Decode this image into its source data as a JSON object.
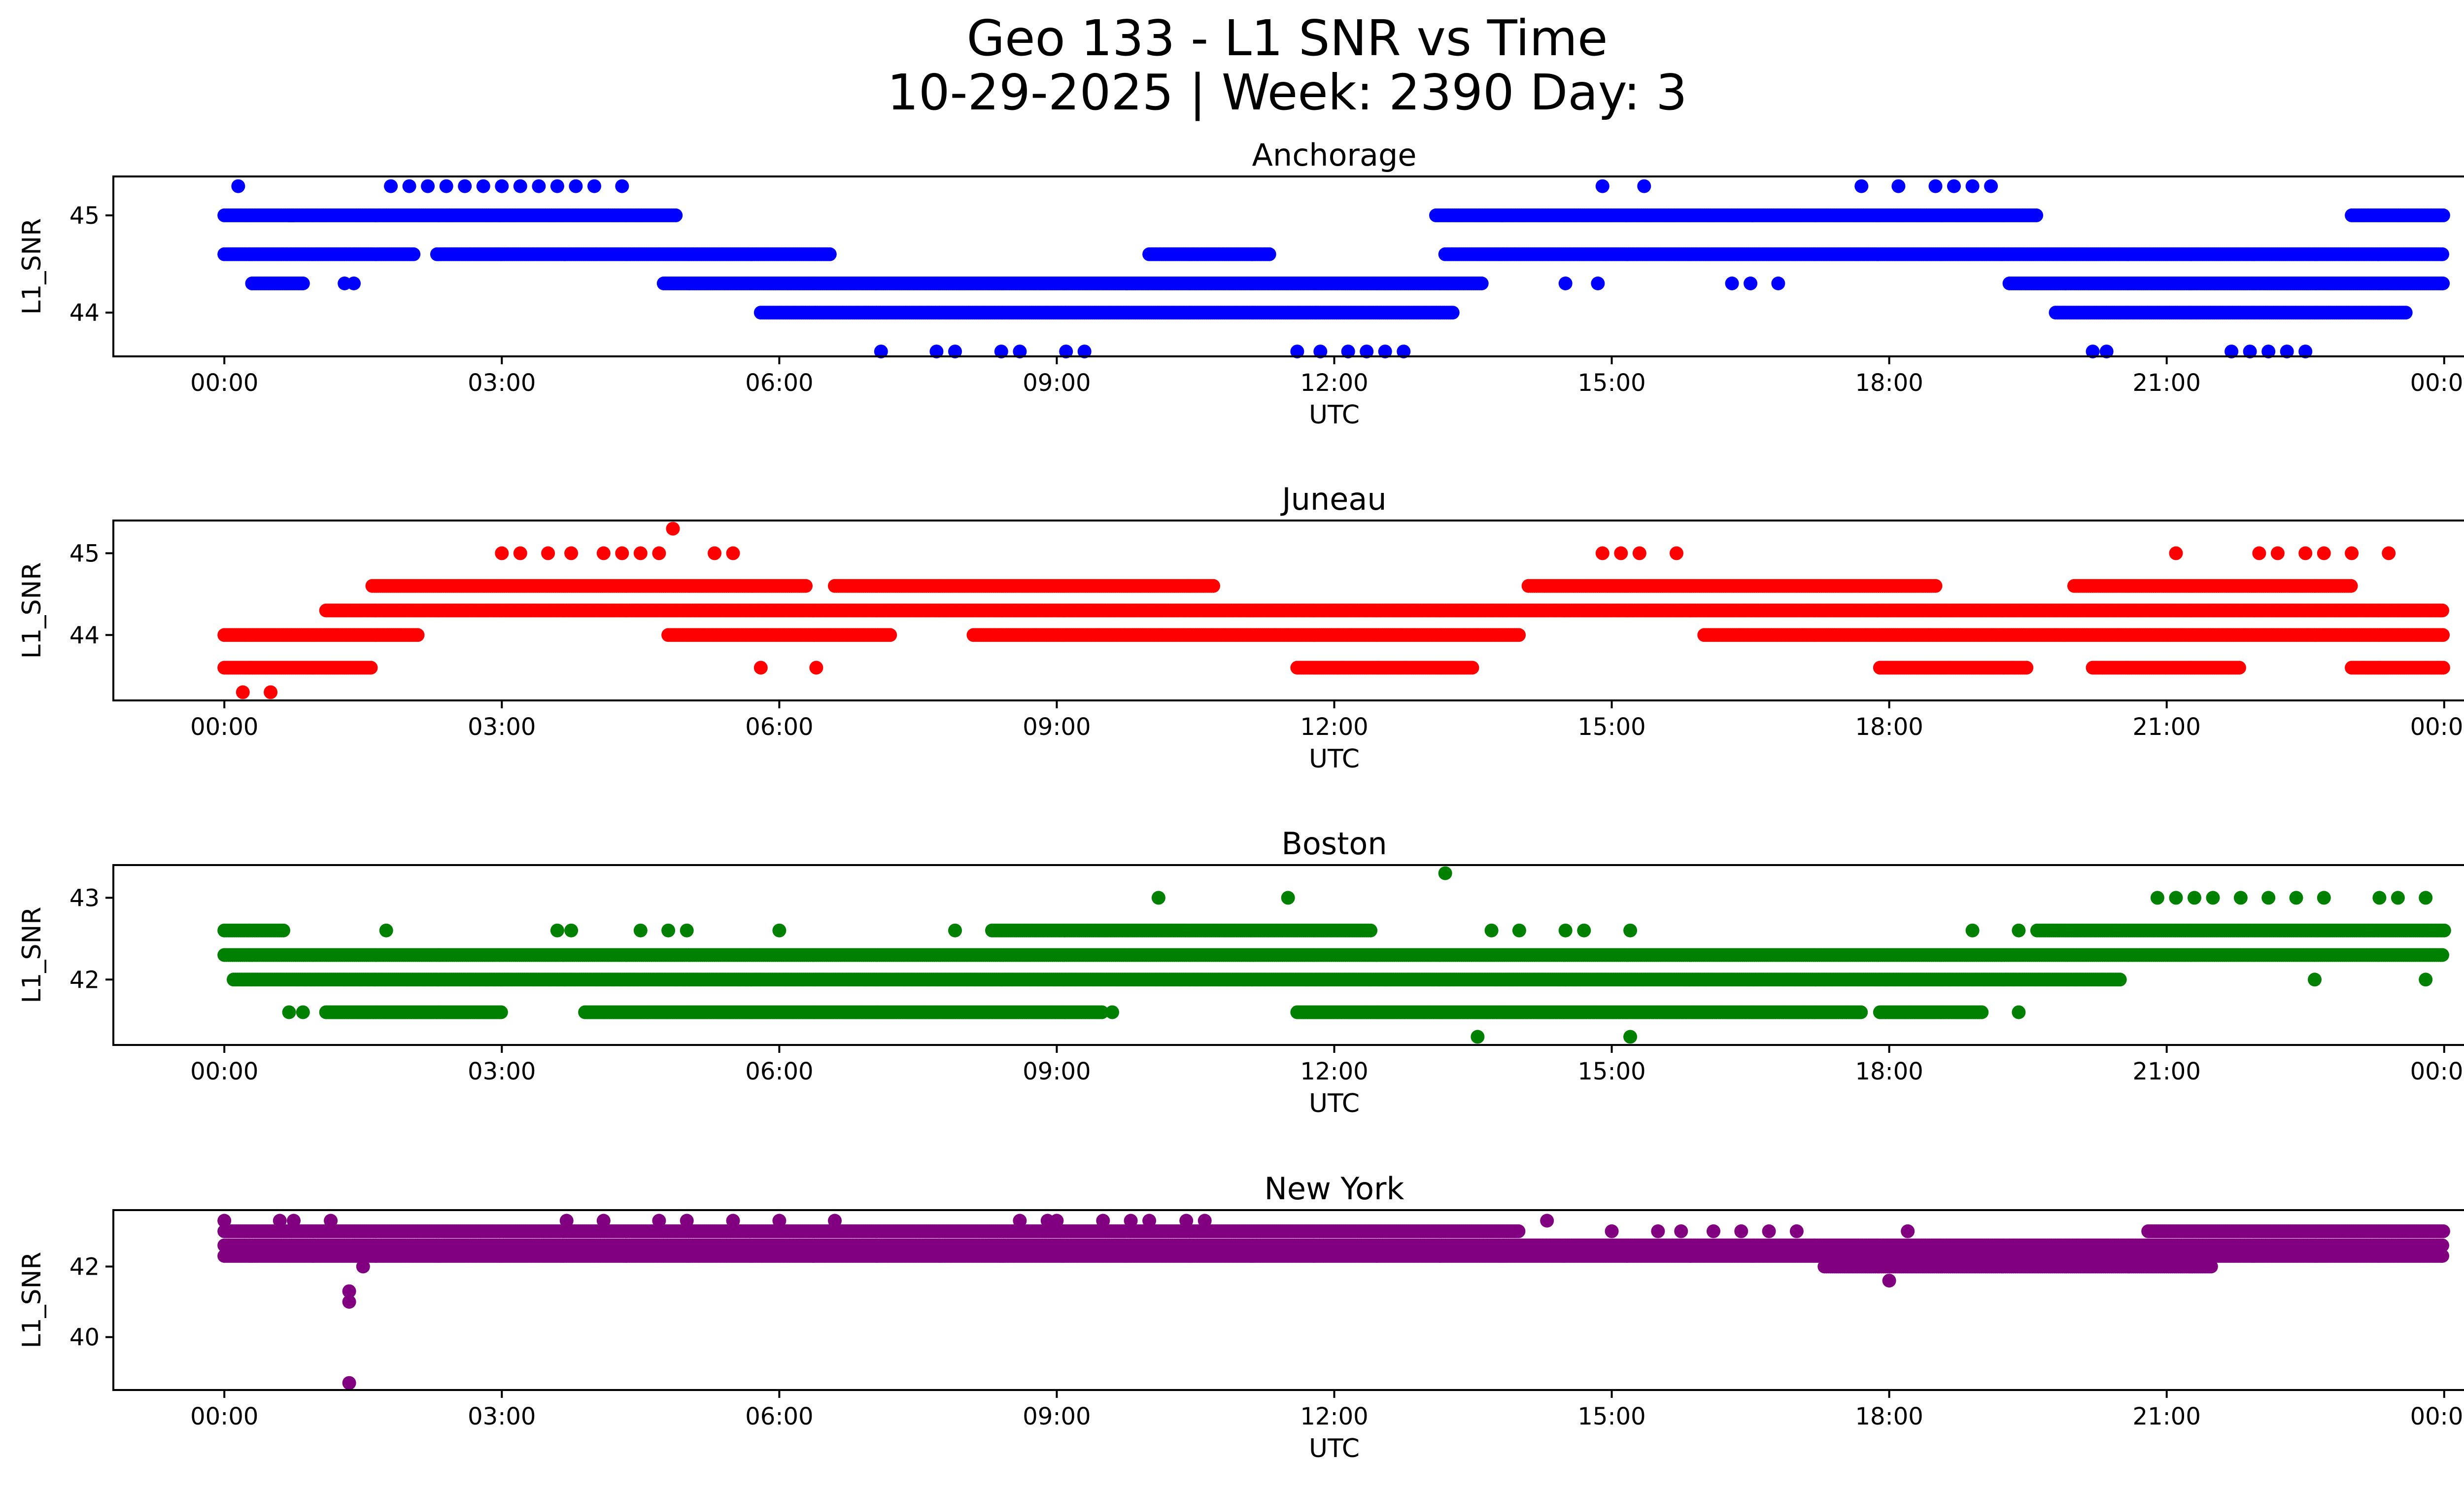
{
  "figure": {
    "title_line1": "Geo 133 - L1 SNR vs Time",
    "title_line2": "10-29-2025 | Week: 2390 Day: 3"
  },
  "chart_data": [
    {
      "type": "scatter",
      "title": "Anchorage",
      "xlabel": "UTC",
      "ylabel": "L1_SNR",
      "color": "#0000ff",
      "xlim": [
        -1.2,
        25.2
      ],
      "ylim": [
        43.55,
        45.4
      ],
      "xticks": [
        "00:00",
        "03:00",
        "06:00",
        "09:00",
        "12:00",
        "15:00",
        "18:00",
        "21:00",
        "00:00"
      ],
      "yticks": [
        44,
        45
      ],
      "levels": [
        45.0,
        44.6,
        44.3,
        44.0
      ],
      "bands": [
        {
          "y": 45.0,
          "x": [
            [
              0,
              0.75
            ],
            [
              0.7,
              4.9
            ],
            [
              13.1,
              19.6
            ],
            [
              23.0,
              24
            ]
          ]
        },
        {
          "y": 44.6,
          "x": [
            [
              0,
              2.05
            ],
            [
              2.3,
              6.55
            ],
            [
              10.0,
              11.3
            ],
            [
              13.2,
              24
            ]
          ]
        },
        {
          "y": 44.3,
          "x": [
            [
              0.3,
              0.85
            ],
            [
              4.75,
              13.6
            ],
            [
              19.3,
              24
            ]
          ]
        },
        {
          "y": 44.0,
          "x": [
            [
              5.8,
              13.3
            ],
            [
              19.8,
              23.6
            ]
          ]
        }
      ],
      "points": [
        [
          0.15,
          45.3
        ],
        [
          1.8,
          45.3
        ],
        [
          2.0,
          45.3
        ],
        [
          2.2,
          45.3
        ],
        [
          2.4,
          45.3
        ],
        [
          2.6,
          45.3
        ],
        [
          2.8,
          45.3
        ],
        [
          3.0,
          45.3
        ],
        [
          3.2,
          45.3
        ],
        [
          3.4,
          45.3
        ],
        [
          3.6,
          45.3
        ],
        [
          3.8,
          45.3
        ],
        [
          4.0,
          45.3
        ],
        [
          4.3,
          45.3
        ],
        [
          14.9,
          45.3
        ],
        [
          15.35,
          45.3
        ],
        [
          17.7,
          45.3
        ],
        [
          18.1,
          45.3
        ],
        [
          18.5,
          45.3
        ],
        [
          18.7,
          45.3
        ],
        [
          18.9,
          45.3
        ],
        [
          19.1,
          45.3
        ],
        [
          1.3,
          44.3
        ],
        [
          1.4,
          44.3
        ],
        [
          14.5,
          44.3
        ],
        [
          14.85,
          44.3
        ],
        [
          16.3,
          44.3
        ],
        [
          16.5,
          44.3
        ],
        [
          16.8,
          44.3
        ],
        [
          7.1,
          43.6
        ],
        [
          7.7,
          43.6
        ],
        [
          7.9,
          43.6
        ],
        [
          8.4,
          43.6
        ],
        [
          8.6,
          43.6
        ],
        [
          9.1,
          43.6
        ],
        [
          9.3,
          43.6
        ],
        [
          11.6,
          43.6
        ],
        [
          11.85,
          43.6
        ],
        [
          12.15,
          43.6
        ],
        [
          12.35,
          43.6
        ],
        [
          12.55,
          43.6
        ],
        [
          12.75,
          43.6
        ],
        [
          20.2,
          43.6
        ],
        [
          20.35,
          43.6
        ],
        [
          21.7,
          43.6
        ],
        [
          21.9,
          43.6
        ],
        [
          22.1,
          43.6
        ],
        [
          22.3,
          43.6
        ],
        [
          22.5,
          43.6
        ]
      ]
    },
    {
      "type": "scatter",
      "title": "Juneau",
      "xlabel": "UTC",
      "ylabel": "L1_SNR",
      "color": "#ff0000",
      "xlim": [
        -1.2,
        25.2
      ],
      "ylim": [
        43.2,
        45.4
      ],
      "xticks": [
        "00:00",
        "03:00",
        "06:00",
        "09:00",
        "12:00",
        "15:00",
        "18:00",
        "21:00",
        "00:00"
      ],
      "yticks": [
        44,
        45
      ],
      "levels": [
        44.6,
        44.3,
        44.0,
        43.6
      ],
      "bands": [
        {
          "y": 44.6,
          "x": [
            [
              1.6,
              6.3
            ],
            [
              6.6,
              10.7
            ],
            [
              14.1,
              18.5
            ],
            [
              20.0,
              23.0
            ]
          ]
        },
        {
          "y": 44.3,
          "x": [
            [
              1.1,
              24
            ]
          ]
        },
        {
          "y": 44.0,
          "x": [
            [
              0,
              2.1
            ],
            [
              4.8,
              7.2
            ],
            [
              8.1,
              14.0
            ],
            [
              16.0,
              24
            ]
          ]
        },
        {
          "y": 43.6,
          "x": [
            [
              0,
              1.6
            ],
            [
              11.6,
              13.5
            ],
            [
              17.9,
              19.5
            ],
            [
              20.2,
              21.8
            ],
            [
              23.0,
              24
            ]
          ]
        }
      ],
      "points": [
        [
          3.0,
          45.0
        ],
        [
          3.2,
          45.0
        ],
        [
          3.5,
          45.0
        ],
        [
          3.75,
          45.0
        ],
        [
          4.1,
          45.0
        ],
        [
          4.3,
          45.0
        ],
        [
          4.5,
          45.0
        ],
        [
          4.7,
          45.0
        ],
        [
          5.3,
          45.0
        ],
        [
          5.5,
          45.0
        ],
        [
          14.9,
          45.0
        ],
        [
          15.1,
          45.0
        ],
        [
          15.3,
          45.0
        ],
        [
          15.7,
          45.0
        ],
        [
          21.1,
          45.0
        ],
        [
          22.0,
          45.0
        ],
        [
          22.2,
          45.0
        ],
        [
          22.5,
          45.0
        ],
        [
          22.7,
          45.0
        ],
        [
          23.0,
          45.0
        ],
        [
          23.4,
          45.0
        ],
        [
          4.85,
          45.3
        ],
        [
          0.2,
          43.3
        ],
        [
          0.5,
          43.3
        ],
        [
          5.8,
          43.6
        ],
        [
          6.4,
          43.6
        ]
      ]
    },
    {
      "type": "scatter",
      "title": "Boston",
      "xlabel": "UTC",
      "ylabel": "L1_SNR",
      "color": "#008000",
      "xlim": [
        -1.2,
        25.2
      ],
      "ylim": [
        41.2,
        43.4
      ],
      "xticks": [
        "00:00",
        "03:00",
        "06:00",
        "09:00",
        "12:00",
        "15:00",
        "18:00",
        "21:00",
        "00:00"
      ],
      "yticks": [
        42,
        43
      ],
      "levels": [
        42.6,
        42.3,
        42.0,
        41.6
      ],
      "bands": [
        {
          "y": 42.6,
          "x": [
            [
              0,
              0.65
            ],
            [
              8.3,
              12.4
            ],
            [
              19.6,
              24
            ]
          ]
        },
        {
          "y": 42.3,
          "x": [
            [
              0,
              24
            ]
          ]
        },
        {
          "y": 42.0,
          "x": [
            [
              0.1,
              20.5
            ]
          ]
        },
        {
          "y": 41.6,
          "x": [
            [
              1.1,
              3.0
            ],
            [
              3.9,
              9.5
            ],
            [
              11.6,
              17.7
            ],
            [
              17.9,
              19.0
            ]
          ]
        }
      ],
      "points": [
        [
          1.75,
          42.6
        ],
        [
          3.6,
          42.6
        ],
        [
          3.75,
          42.6
        ],
        [
          4.5,
          42.6
        ],
        [
          4.8,
          42.6
        ],
        [
          5.0,
          42.6
        ],
        [
          6.0,
          42.6
        ],
        [
          7.9,
          42.6
        ],
        [
          13.7,
          42.6
        ],
        [
          14.0,
          42.6
        ],
        [
          14.5,
          42.6
        ],
        [
          14.7,
          42.6
        ],
        [
          15.2,
          42.6
        ],
        [
          18.9,
          42.6
        ],
        [
          19.4,
          42.6
        ],
        [
          10.1,
          43.0
        ],
        [
          11.5,
          43.0
        ],
        [
          20.9,
          43.0
        ],
        [
          21.1,
          43.0
        ],
        [
          21.3,
          43.0
        ],
        [
          21.5,
          43.0
        ],
        [
          21.8,
          43.0
        ],
        [
          22.1,
          43.0
        ],
        [
          22.4,
          43.0
        ],
        [
          22.7,
          43.0
        ],
        [
          23.3,
          43.0
        ],
        [
          23.5,
          43.0
        ],
        [
          23.8,
          43.0
        ],
        [
          13.2,
          43.3
        ],
        [
          13.55,
          41.3
        ],
        [
          15.2,
          41.3
        ],
        [
          0.7,
          41.6
        ],
        [
          0.85,
          41.6
        ],
        [
          9.6,
          41.6
        ],
        [
          19.4,
          41.6
        ],
        [
          22.6,
          42.0
        ],
        [
          23.8,
          42.0
        ]
      ]
    },
    {
      "type": "scatter",
      "title": "New York",
      "xlabel": "UTC",
      "ylabel": "L1_SNR",
      "color": "#800080",
      "xlim": [
        -1.2,
        25.2
      ],
      "ylim": [
        38.5,
        43.6
      ],
      "xticks": [
        "00:00",
        "03:00",
        "06:00",
        "09:00",
        "12:00",
        "15:00",
        "18:00",
        "21:00",
        "00:00"
      ],
      "yticks": [
        40,
        42
      ],
      "levels": [
        43.0,
        42.6,
        42.3,
        42.0
      ],
      "bands": [
        {
          "y": 43.0,
          "x": [
            [
              0,
              14.0
            ],
            [
              20.8,
              24
            ]
          ]
        },
        {
          "y": 42.6,
          "x": [
            [
              0,
              24
            ]
          ]
        },
        {
          "y": 42.3,
          "x": [
            [
              0,
              24
            ]
          ]
        },
        {
          "y": 42.0,
          "x": [
            [
              17.3,
              21.5
            ]
          ]
        }
      ],
      "points": [
        [
          0.0,
          43.3
        ],
        [
          0.6,
          43.3
        ],
        [
          0.75,
          43.3
        ],
        [
          1.15,
          43.3
        ],
        [
          3.7,
          43.3
        ],
        [
          4.1,
          43.3
        ],
        [
          4.7,
          43.3
        ],
        [
          5.0,
          43.3
        ],
        [
          5.5,
          43.3
        ],
        [
          6.0,
          43.3
        ],
        [
          6.6,
          43.3
        ],
        [
          8.6,
          43.3
        ],
        [
          8.9,
          43.3
        ],
        [
          9.0,
          43.3
        ],
        [
          9.5,
          43.3
        ],
        [
          9.8,
          43.3
        ],
        [
          10.0,
          43.3
        ],
        [
          10.4,
          43.3
        ],
        [
          10.6,
          43.3
        ],
        [
          14.3,
          43.3
        ],
        [
          15.0,
          43.0
        ],
        [
          15.5,
          43.0
        ],
        [
          15.75,
          43.0
        ],
        [
          16.1,
          43.0
        ],
        [
          16.4,
          43.0
        ],
        [
          16.7,
          43.0
        ],
        [
          17.0,
          43.0
        ],
        [
          18.2,
          43.0
        ],
        [
          1.35,
          41.3
        ],
        [
          1.35,
          41.0
        ],
        [
          1.35,
          38.7
        ],
        [
          1.5,
          42.0
        ],
        [
          18.0,
          41.6
        ]
      ]
    }
  ]
}
